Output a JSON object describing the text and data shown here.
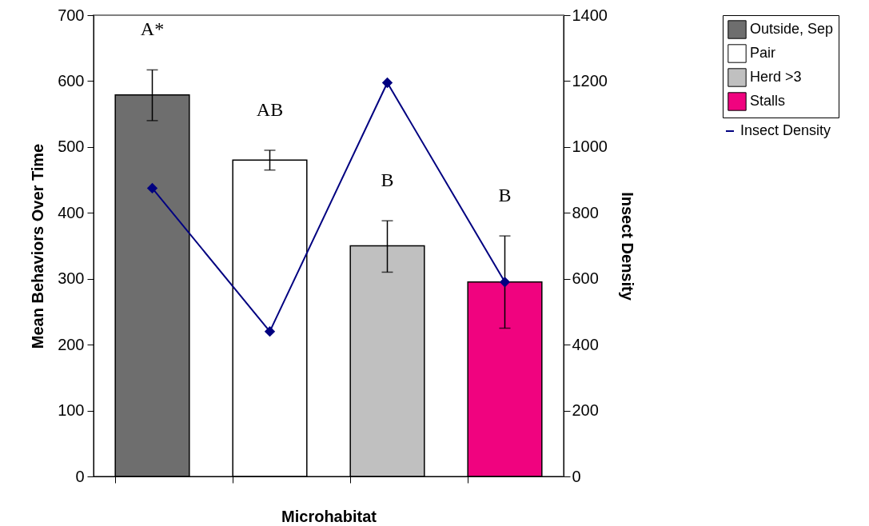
{
  "chart_data": {
    "type": "bar",
    "xlabel": "Microhabitat",
    "ylabel": "Mean Behaviors Over Time",
    "y2label": "Insect Density",
    "categories": [
      null,
      null,
      null,
      null
    ],
    "series": [
      {
        "name": "Outside, Sep",
        "color": "#6e6e6e",
        "values": [
          579,
          null,
          null,
          null
        ],
        "errors": [
          [
            540,
            617
          ],
          null,
          null,
          null
        ]
      },
      {
        "name": "Pair",
        "color": "#ffffff",
        "values": [
          null,
          480,
          null,
          null
        ],
        "errors": [
          null,
          [
            465,
            495
          ],
          null,
          null
        ]
      },
      {
        "name": "Herd >3",
        "color": "#c0c0c0",
        "values": [
          null,
          null,
          350,
          null
        ],
        "errors": [
          null,
          null,
          [
            310,
            388
          ],
          null
        ]
      },
      {
        "name": "Stalls",
        "color": "#f0037f",
        "values": [
          null,
          null,
          null,
          295
        ],
        "errors": [
          null,
          null,
          null,
          [
            225,
            365
          ]
        ]
      },
      {
        "name": "Insect Density",
        "type": "line",
        "axis": "y2",
        "color": "#000080",
        "marker": "diamond",
        "values": [
          875,
          440,
          1195,
          590
        ]
      }
    ],
    "ylim": [
      0,
      700
    ],
    "yticks": [
      0,
      100,
      200,
      300,
      400,
      500,
      600,
      700
    ],
    "y2lim": [
      0,
      1400
    ],
    "y2ticks": [
      0,
      200,
      400,
      600,
      800,
      1000,
      1200,
      1400
    ],
    "annotations": [
      "A*",
      "AB",
      "B",
      "B"
    ],
    "grid": false,
    "legend": "right"
  }
}
